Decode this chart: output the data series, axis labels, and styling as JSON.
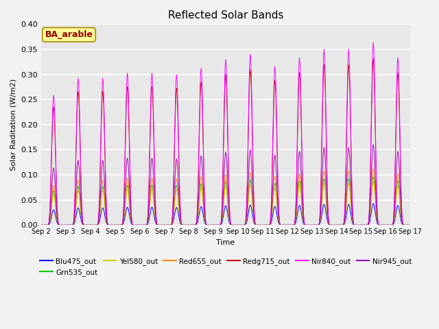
{
  "title": "Reflected Solar Bands",
  "xlabel": "Time",
  "ylabel": "Solar Raditation (W/m2)",
  "annotation": "BA_arable",
  "ylim": [
    0.0,
    0.4
  ],
  "series_order": [
    "Blu475_out",
    "Grn535_out",
    "Yel580_out",
    "Red655_out",
    "Redg715_out",
    "Nir840_out",
    "Nir945_out"
  ],
  "series": {
    "Blu475_out": {
      "color": "#0000ff",
      "peak_scale": 0.04
    },
    "Grn535_out": {
      "color": "#00cc00",
      "peak_scale": 0.09
    },
    "Yel580_out": {
      "color": "#cccc00",
      "peak_scale": 0.08
    },
    "Red655_out": {
      "color": "#ff8800",
      "peak_scale": 0.105
    },
    "Redg715_out": {
      "color": "#cc0000",
      "peak_scale": 0.31
    },
    "Nir840_out": {
      "color": "#ff00ff",
      "peak_scale": 0.34
    },
    "Nir945_out": {
      "color": "#9900bb",
      "peak_scale": 0.15
    }
  },
  "day_peaks": [
    0.76,
    0.86,
    0.86,
    0.89,
    0.89,
    0.88,
    0.92,
    0.97,
    1.0,
    0.93,
    0.98,
    1.03,
    1.03,
    1.07,
    0.98,
    0.0
  ],
  "background_color": "#e8e8e8",
  "tick_labels": [
    "Sep 2",
    "Sep 3",
    "Sep 4",
    "Sep 5",
    "Sep 6",
    "Sep 7",
    "Sep 8",
    "Sep 9",
    "Sep 10",
    "Sep 11",
    "Sep 12",
    "Sep 13",
    "Sep 14",
    "Sep 15",
    "Sep 16",
    "Sep 17"
  ],
  "legend_ncol": 6,
  "figsize": [
    6.4,
    4.8
  ],
  "dpi": 100
}
